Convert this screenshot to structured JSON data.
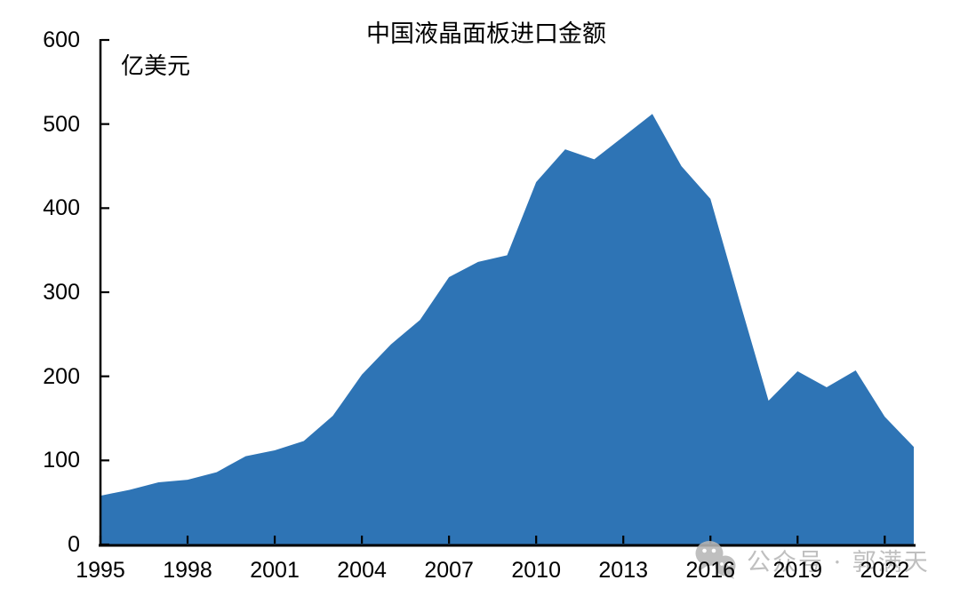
{
  "chart_data": {
    "type": "area",
    "title": "中国液晶面板进口金额",
    "unit_label": "亿美元",
    "xlabel": "",
    "ylabel": "亿美元",
    "x": [
      1995,
      1996,
      1997,
      1998,
      1999,
      2000,
      2001,
      2002,
      2003,
      2004,
      2005,
      2006,
      2007,
      2008,
      2009,
      2010,
      2011,
      2012,
      2013,
      2014,
      2015,
      2016,
      2017,
      2018,
      2019,
      2020,
      2021,
      2022,
      2023
    ],
    "values": [
      58,
      65,
      74,
      77,
      86,
      105,
      112,
      123,
      153,
      202,
      238,
      267,
      318,
      336,
      344,
      431,
      470,
      458,
      485,
      512,
      450,
      411,
      290,
      171,
      206,
      187,
      207,
      152,
      116
    ],
    "ylim": [
      0,
      600
    ],
    "y_ticks": [
      0,
      100,
      200,
      300,
      400,
      500,
      600
    ],
    "x_tick_years": [
      1995,
      1998,
      2001,
      2004,
      2007,
      2010,
      2013,
      2016,
      2019,
      2022
    ],
    "x_tick_labels": [
      "1995",
      "1998",
      "2001",
      "2004",
      "2007",
      "2010",
      "2013",
      "2016",
      "2019",
      "2022"
    ],
    "grid": false,
    "legend_position": "none"
  },
  "colors": {
    "area_fill": "#2E74B5",
    "axis": "#000000",
    "background": "#ffffff",
    "watermark": "#b7b7b7"
  },
  "watermark": {
    "icon": "wechat-icon",
    "text": "公众号 · 郭满天"
  }
}
